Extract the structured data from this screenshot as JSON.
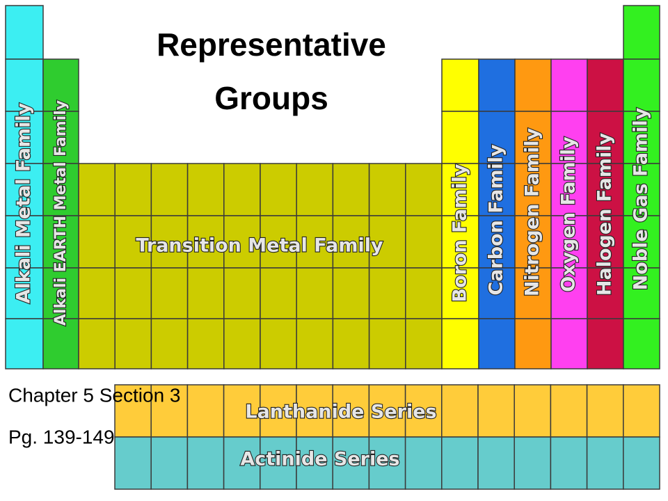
{
  "title_lines": [
    "Representative",
    "Groups"
  ],
  "subtitle_lines": [
    "Chapter 5 Section 3",
    "Pg. 139-149"
  ],
  "families": {
    "alkali": "Alkali Metal Family",
    "alkaline_earth": "Alkali EARTH Metal Family",
    "transition": "Transition Metal Family",
    "boron": "Boron Family",
    "carbon": "Carbon Family",
    "nitrogen": "Nitrogen Family",
    "oxygen": "Oxygen Family",
    "halogen": "Halogen Family",
    "noble_gas": "Noble Gas Family",
    "lanthanide": "Lanthanide Series",
    "actinide": "Actinide Series"
  }
}
